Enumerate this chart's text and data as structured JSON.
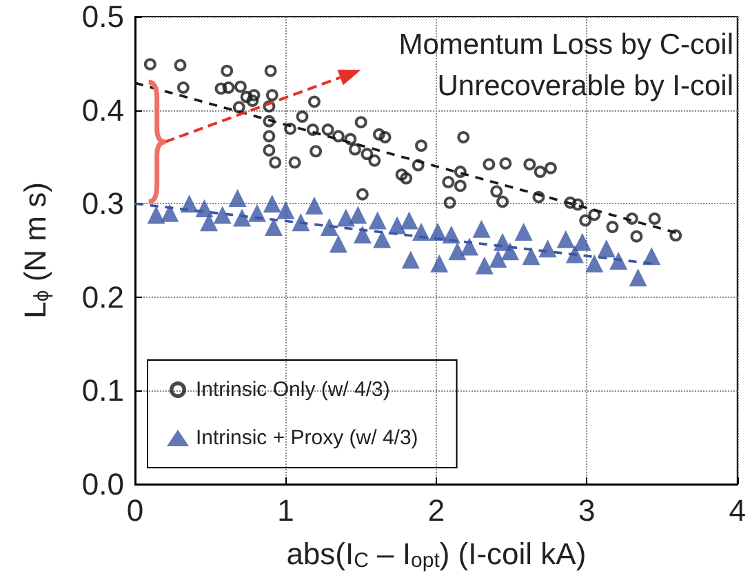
{
  "chart_data": {
    "type": "scatter",
    "xlabel": "abs(I$_{C}$ – I$_{opt}$) (I-coil kA)",
    "ylabel": "L$_{ϕ}$ (N m s)",
    "annotations": [
      "Momentum Loss by C-coil",
      "Unrecoverable by I-coil"
    ],
    "xlim": [
      0,
      4
    ],
    "xticks": [
      0,
      1,
      2,
      3,
      4
    ],
    "ylim": [
      0,
      0.5
    ],
    "yticks": [
      {
        "value": 0,
        "label": "0.0"
      },
      0.1,
      0.2,
      0.3,
      0.4,
      0.5
    ],
    "grid": true,
    "legend": "bottom left",
    "series": [
      {
        "name": "Intrinsic Only (w/ 4/3)",
        "color": "#1a1a1a",
        "marker": "circle",
        "x": [
          0.1,
          0.3,
          0.32,
          0.61,
          0.9,
          0.57,
          0.62,
          0.7,
          0.69,
          0.74,
          0.79,
          0.78,
          0.91,
          0.89,
          0.89,
          0.89,
          0.89,
          0.93,
          1.06,
          1.03,
          1.11,
          1.19,
          1.18,
          1.2,
          1.28,
          1.35,
          1.43,
          1.46,
          1.54,
          1.59,
          1.5,
          1.51,
          1.62,
          1.66,
          1.77,
          1.8,
          1.88,
          1.9,
          2.08,
          2.16,
          2.16,
          2.09,
          2.18,
          2.35,
          2.4,
          2.44,
          2.46,
          2.62,
          2.69,
          2.76,
          2.68,
          2.89,
          2.94,
          2.99,
          3.05,
          3.17,
          3.3,
          3.33,
          3.45,
          3.59
        ],
        "values": [
          0.449,
          0.448,
          0.424,
          0.442,
          0.442,
          0.423,
          0.424,
          0.425,
          0.403,
          0.414,
          0.416,
          0.41,
          0.416,
          0.404,
          0.388,
          0.372,
          0.357,
          0.344,
          0.344,
          0.38,
          0.393,
          0.409,
          0.379,
          0.356,
          0.379,
          0.372,
          0.369,
          0.358,
          0.353,
          0.346,
          0.387,
          0.31,
          0.374,
          0.371,
          0.331,
          0.327,
          0.341,
          0.362,
          0.323,
          0.334,
          0.319,
          0.301,
          0.371,
          0.342,
          0.313,
          0.302,
          0.343,
          0.342,
          0.334,
          0.338,
          0.307,
          0.301,
          0.299,
          0.282,
          0.288,
          0.275,
          0.284,
          0.265,
          0.284,
          0.266
        ]
      },
      {
        "name": "Intrinsic + Proxy (w/ 4/3)",
        "color": "#3a55a4",
        "marker": "triangle",
        "x": [
          0.14,
          0.23,
          0.36,
          0.46,
          0.49,
          0.58,
          0.68,
          0.71,
          0.81,
          0.91,
          0.92,
          1.0,
          1.1,
          1.19,
          1.29,
          1.35,
          1.4,
          1.48,
          1.51,
          1.61,
          1.64,
          1.74,
          1.82,
          1.83,
          1.9,
          2.01,
          2.02,
          2.1,
          2.14,
          2.22,
          2.3,
          2.32,
          2.41,
          2.44,
          2.49,
          2.58,
          2.63,
          2.74,
          2.86,
          2.92,
          2.97,
          3.05,
          3.13,
          3.21,
          3.34,
          3.43
        ],
        "values": [
          0.288,
          0.29,
          0.3,
          0.295,
          0.28,
          0.288,
          0.306,
          0.285,
          0.29,
          0.3,
          0.275,
          0.293,
          0.28,
          0.298,
          0.275,
          0.257,
          0.285,
          0.288,
          0.267,
          0.282,
          0.262,
          0.277,
          0.282,
          0.24,
          0.27,
          0.27,
          0.236,
          0.267,
          0.249,
          0.254,
          0.273,
          0.234,
          0.241,
          0.259,
          0.249,
          0.27,
          0.244,
          0.252,
          0.262,
          0.246,
          0.259,
          0.236,
          0.252,
          0.239,
          0.221,
          0.244
        ]
      },
      {
        "type": "line",
        "color": "#1a1a1a",
        "line_style": "dashed",
        "marker": "none",
        "x": [
          0,
          3.59
        ],
        "values": [
          0.429,
          0.269
        ]
      },
      {
        "type": "line",
        "color": "#3a55a4",
        "line_style": "dashed",
        "marker": "none",
        "x": [
          0,
          3.43
        ],
        "values": [
          0.3,
          0.236
        ]
      }
    ]
  }
}
